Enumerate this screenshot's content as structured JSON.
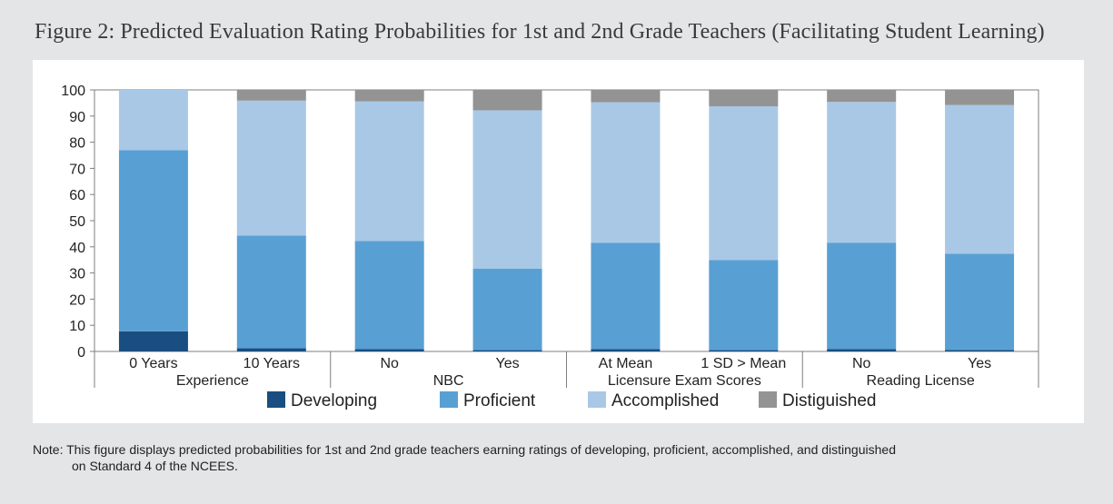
{
  "title": "Figure 2: Predicted Evaluation Rating Probabilities for 1st and 2nd Grade Teachers (Facilitating Student Learning)",
  "note": {
    "line1": "Note: This figure displays predicted probabilities for 1st and 2nd grade teachers earning ratings of developing, proficient, accomplished, and distinguished",
    "line2": "on Standard 4 of the NCEES."
  },
  "chart_data": {
    "type": "bar",
    "stacked": true,
    "ylim": [
      0,
      100
    ],
    "yticks": [
      0,
      10,
      20,
      30,
      40,
      50,
      60,
      70,
      80,
      90,
      100
    ],
    "categories": [
      "0 Years",
      "10 Years",
      "No",
      "Yes",
      "At Mean",
      "1 SD > Mean",
      "No",
      "Yes"
    ],
    "groups": [
      {
        "label": "Experience",
        "categories": [
          0,
          1
        ]
      },
      {
        "label": "NBC",
        "categories": [
          2,
          3
        ]
      },
      {
        "label": "Licensure Exam Scores",
        "categories": [
          4,
          5
        ]
      },
      {
        "label": "Reading License",
        "categories": [
          6,
          7
        ]
      }
    ],
    "series": [
      {
        "name": "Developing",
        "color": "#1a4e80",
        "values": [
          7.7,
          1.2,
          0.9,
          0.5,
          0.9,
          0.5,
          0.9,
          0.6
        ]
      },
      {
        "name": "Proficient",
        "color": "#58a0d4",
        "values": [
          69.3,
          43.1,
          41.3,
          31.2,
          40.6,
          34.4,
          40.7,
          36.8
        ]
      },
      {
        "name": "Accomplished",
        "color": "#a9c8e6",
        "values": [
          23.0,
          51.6,
          53.4,
          60.5,
          53.8,
          58.8,
          53.8,
          56.8
        ]
      },
      {
        "name": "Distiguished",
        "color": "#939393",
        "values": [
          0.0,
          4.1,
          4.4,
          7.8,
          4.7,
          6.3,
          4.6,
          5.8
        ]
      }
    ],
    "legend_position": "bottom"
  }
}
